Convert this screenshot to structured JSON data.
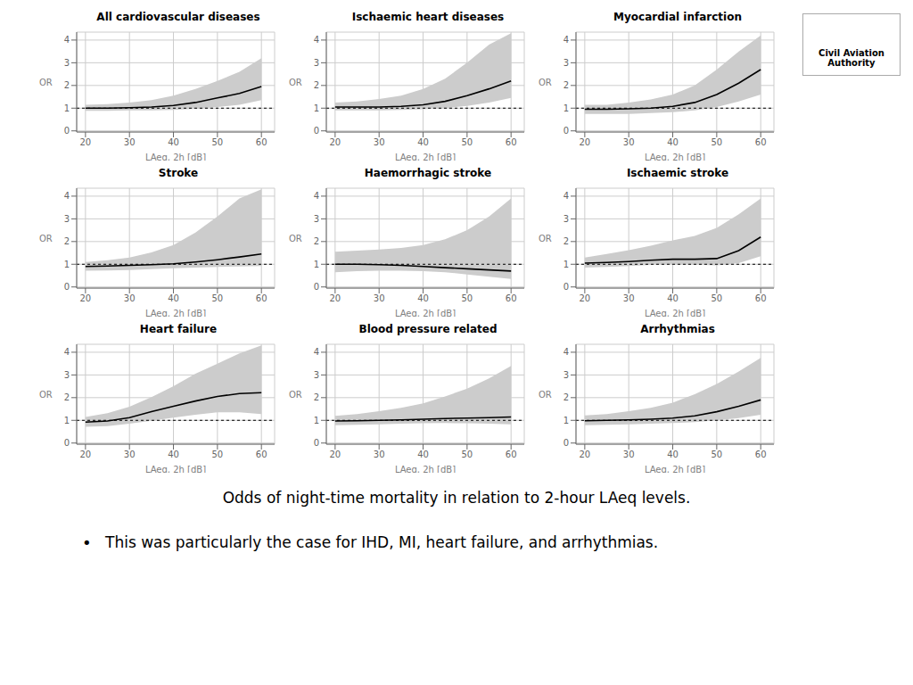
{
  "chart_data": [
    {
      "type": "line",
      "title": "All cardiovascular diseases",
      "x": [
        20,
        25,
        30,
        35,
        40,
        45,
        50,
        55,
        60
      ],
      "xlim": [
        18,
        63
      ],
      "xticks": [
        20,
        30,
        40,
        50,
        60
      ],
      "ylim": [
        -0.05,
        4.35
      ],
      "yticks": [
        0,
        1,
        2,
        3,
        4
      ],
      "xlabel": "LAeq, 2h [dB]",
      "ylabel": "OR",
      "grid": true,
      "reference_y": 1.0,
      "series": [
        {
          "type": "band",
          "color": "#cccccc",
          "lower": [
            0.88,
            0.88,
            0.9,
            0.9,
            0.92,
            0.97,
            1.05,
            1.15,
            1.35
          ],
          "upper": [
            1.15,
            1.18,
            1.25,
            1.35,
            1.55,
            1.85,
            2.2,
            2.6,
            3.2
          ]
        },
        {
          "type": "line",
          "color": "#000000",
          "values": [
            1.0,
            1.0,
            1.02,
            1.05,
            1.12,
            1.25,
            1.45,
            1.65,
            1.95
          ]
        }
      ]
    },
    {
      "type": "line",
      "title": "Ischaemic heart diseases",
      "x": [
        20,
        25,
        30,
        35,
        40,
        45,
        50,
        55,
        60
      ],
      "xlim": [
        18,
        63
      ],
      "xticks": [
        20,
        30,
        40,
        50,
        60
      ],
      "ylim": [
        -0.05,
        4.35
      ],
      "yticks": [
        0,
        1,
        2,
        3,
        4
      ],
      "xlabel": "LAeq, 2h [dB]",
      "ylabel": "OR",
      "grid": true,
      "reference_y": 1.0,
      "series": [
        {
          "type": "band",
          "color": "#cccccc",
          "lower": [
            0.9,
            0.9,
            0.9,
            0.92,
            0.95,
            1.0,
            1.1,
            1.25,
            1.45
          ],
          "upper": [
            1.25,
            1.3,
            1.4,
            1.55,
            1.85,
            2.3,
            3.0,
            3.8,
            4.3
          ]
        },
        {
          "type": "line",
          "color": "#000000",
          "values": [
            1.05,
            1.05,
            1.05,
            1.08,
            1.15,
            1.3,
            1.55,
            1.85,
            2.2
          ]
        }
      ]
    },
    {
      "type": "line",
      "title": "Myocardial infarction",
      "x": [
        20,
        25,
        30,
        35,
        40,
        45,
        50,
        55,
        60
      ],
      "xlim": [
        18,
        63
      ],
      "xticks": [
        20,
        30,
        40,
        50,
        60
      ],
      "ylim": [
        -0.05,
        4.35
      ],
      "yticks": [
        0,
        1,
        2,
        3,
        4
      ],
      "xlabel": "LAeq, 2h [dB]",
      "ylabel": "OR",
      "grid": true,
      "reference_y": 1.0,
      "series": [
        {
          "type": "band",
          "color": "#cccccc",
          "lower": [
            0.75,
            0.75,
            0.75,
            0.78,
            0.82,
            0.9,
            1.05,
            1.3,
            1.6
          ],
          "upper": [
            1.15,
            1.15,
            1.25,
            1.38,
            1.6,
            2.0,
            2.7,
            3.5,
            4.2
          ]
        },
        {
          "type": "line",
          "color": "#000000",
          "values": [
            0.95,
            0.95,
            0.97,
            1.0,
            1.08,
            1.25,
            1.6,
            2.1,
            2.7
          ]
        }
      ]
    },
    {
      "type": "line",
      "title": "Stroke",
      "x": [
        20,
        25,
        30,
        35,
        40,
        45,
        50,
        55,
        60
      ],
      "xlim": [
        18,
        63
      ],
      "xticks": [
        20,
        30,
        40,
        50,
        60
      ],
      "ylim": [
        -0.05,
        4.35
      ],
      "yticks": [
        0,
        1,
        2,
        3,
        4
      ],
      "xlabel": "LAeq, 2h [dB]",
      "ylabel": "OR",
      "grid": true,
      "reference_y": 1.0,
      "series": [
        {
          "type": "band",
          "color": "#cccccc",
          "lower": [
            0.72,
            0.73,
            0.75,
            0.78,
            0.82,
            0.85,
            0.88,
            0.9,
            0.92
          ],
          "upper": [
            1.1,
            1.18,
            1.3,
            1.52,
            1.85,
            2.4,
            3.1,
            3.9,
            4.3
          ]
        },
        {
          "type": "line",
          "color": "#000000",
          "values": [
            0.9,
            0.92,
            0.95,
            0.98,
            1.02,
            1.1,
            1.2,
            1.32,
            1.45
          ]
        }
      ]
    },
    {
      "type": "line",
      "title": "Haemorrhagic stroke",
      "x": [
        20,
        25,
        30,
        35,
        40,
        45,
        50,
        55,
        60
      ],
      "xlim": [
        18,
        63
      ],
      "xticks": [
        20,
        30,
        40,
        50,
        60
      ],
      "ylim": [
        -0.05,
        4.35
      ],
      "yticks": [
        0,
        1,
        2,
        3,
        4
      ],
      "xlabel": "LAeq, 2h [dB]",
      "ylabel": "OR",
      "grid": true,
      "reference_y": 1.0,
      "series": [
        {
          "type": "band",
          "color": "#cccccc",
          "lower": [
            0.65,
            0.7,
            0.72,
            0.72,
            0.7,
            0.65,
            0.55,
            0.45,
            0.35
          ],
          "upper": [
            1.55,
            1.6,
            1.65,
            1.72,
            1.85,
            2.1,
            2.5,
            3.1,
            3.9
          ]
        },
        {
          "type": "line",
          "color": "#000000",
          "values": [
            1.0,
            1.0,
            0.98,
            0.95,
            0.9,
            0.85,
            0.8,
            0.75,
            0.7
          ]
        }
      ]
    },
    {
      "type": "line",
      "title": "Ischaemic stroke",
      "x": [
        20,
        25,
        30,
        35,
        40,
        45,
        50,
        55,
        60
      ],
      "xlim": [
        18,
        63
      ],
      "xticks": [
        20,
        30,
        40,
        50,
        60
      ],
      "ylim": [
        -0.05,
        4.35
      ],
      "yticks": [
        0,
        1,
        2,
        3,
        4
      ],
      "xlabel": "LAeq, 2h [dB]",
      "ylabel": "OR",
      "grid": true,
      "reference_y": 1.0,
      "series": [
        {
          "type": "band",
          "color": "#cccccc",
          "lower": [
            0.85,
            0.88,
            0.92,
            0.97,
            1.0,
            0.98,
            0.95,
            1.05,
            1.35
          ],
          "upper": [
            1.3,
            1.45,
            1.62,
            1.82,
            2.05,
            2.25,
            2.6,
            3.2,
            3.9
          ]
        },
        {
          "type": "line",
          "color": "#000000",
          "values": [
            1.05,
            1.08,
            1.12,
            1.18,
            1.22,
            1.22,
            1.25,
            1.6,
            2.2
          ]
        }
      ]
    },
    {
      "type": "line",
      "title": "Heart failure",
      "x": [
        20,
        25,
        30,
        35,
        40,
        45,
        50,
        55,
        60
      ],
      "xlim": [
        18,
        63
      ],
      "xticks": [
        20,
        30,
        40,
        50,
        60
      ],
      "ylim": [
        -0.05,
        4.35
      ],
      "yticks": [
        0,
        1,
        2,
        3,
        4
      ],
      "xlabel": "LAeq, 2h [dB]",
      "ylabel": "OR",
      "grid": true,
      "reference_y": 1.0,
      "series": [
        {
          "type": "band",
          "color": "#cccccc",
          "lower": [
            0.72,
            0.75,
            0.85,
            0.98,
            1.12,
            1.25,
            1.35,
            1.35,
            1.28
          ],
          "upper": [
            1.15,
            1.32,
            1.6,
            2.02,
            2.5,
            3.05,
            3.5,
            3.95,
            4.3
          ]
        },
        {
          "type": "line",
          "color": "#000000",
          "values": [
            0.92,
            0.97,
            1.12,
            1.38,
            1.62,
            1.85,
            2.05,
            2.18,
            2.22
          ]
        }
      ]
    },
    {
      "type": "line",
      "title": "Blood pressure related",
      "x": [
        20,
        25,
        30,
        35,
        40,
        45,
        50,
        55,
        60
      ],
      "xlim": [
        18,
        63
      ],
      "xticks": [
        20,
        30,
        40,
        50,
        60
      ],
      "ylim": [
        -0.05,
        4.35
      ],
      "yticks": [
        0,
        1,
        2,
        3,
        4
      ],
      "xlabel": "LAeq, 2h [dB]",
      "ylabel": "OR",
      "grid": true,
      "reference_y": 1.0,
      "series": [
        {
          "type": "band",
          "color": "#cccccc",
          "lower": [
            0.78,
            0.8,
            0.82,
            0.85,
            0.87,
            0.88,
            0.87,
            0.85,
            0.82
          ],
          "upper": [
            1.2,
            1.28,
            1.4,
            1.55,
            1.75,
            2.05,
            2.4,
            2.85,
            3.4
          ]
        },
        {
          "type": "line",
          "color": "#000000",
          "values": [
            0.97,
            0.98,
            1.0,
            1.02,
            1.05,
            1.08,
            1.1,
            1.12,
            1.15
          ]
        }
      ]
    },
    {
      "type": "line",
      "title": "Arrhythmias",
      "x": [
        20,
        25,
        30,
        35,
        40,
        45,
        50,
        55,
        60
      ],
      "xlim": [
        18,
        63
      ],
      "xticks": [
        20,
        30,
        40,
        50,
        60
      ],
      "ylim": [
        -0.05,
        4.35
      ],
      "yticks": [
        0,
        1,
        2,
        3,
        4
      ],
      "xlabel": "LAeq, 2h [dB]",
      "ylabel": "OR",
      "grid": true,
      "reference_y": 1.0,
      "series": [
        {
          "type": "band",
          "color": "#cccccc",
          "lower": [
            0.78,
            0.8,
            0.82,
            0.85,
            0.88,
            0.92,
            1.0,
            1.1,
            1.25
          ],
          "upper": [
            1.22,
            1.28,
            1.4,
            1.55,
            1.78,
            2.15,
            2.6,
            3.15,
            3.75
          ]
        },
        {
          "type": "line",
          "color": "#000000",
          "values": [
            0.98,
            1.0,
            1.02,
            1.05,
            1.1,
            1.2,
            1.38,
            1.62,
            1.9
          ]
        }
      ]
    }
  ],
  "annotations": [
    "Odds of night-time mortality in relation to 2-hour LAeq levels.",
    "•",
    "This was particularly the case for IHD, MI, heart failure, and arrhythmias.",
    "Civil Aviation",
    "Authority"
  ]
}
